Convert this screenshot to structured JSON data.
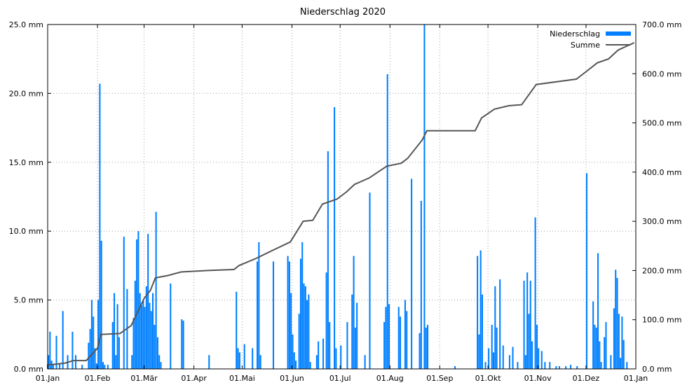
{
  "chart_data": {
    "type": "bar",
    "title": "Niederschlag 2020",
    "x_tick_labels": [
      "01.Jan",
      "01.Feb",
      "01.Mär",
      "01.Apr",
      "01.Mai",
      "01.Jun",
      "01.Jul",
      "01.Aug",
      "01.Sep",
      "01.Okt",
      "01.Nov",
      "01.Dez",
      "01.Jan"
    ],
    "y_left_ticks": [
      "0.0 mm",
      "5.0 mm",
      "10.0 mm",
      "15.0 mm",
      "20.0 mm",
      "25.0 mm"
    ],
    "y_right_ticks": [
      "0.0 mm",
      "100.0 mm",
      "200.0 mm",
      "300.0 mm",
      "400.0 mm",
      "500.0 mm",
      "600.0 mm",
      "700.0 mm"
    ],
    "ylim_left": [
      0,
      25
    ],
    "ylim_right": [
      0,
      700
    ],
    "grid": true,
    "legend_position": "top-right",
    "colors": {
      "bars": "#0080ff",
      "line": "#555555",
      "grid": "#a0a0a0"
    },
    "series": [
      {
        "name": "Niederschlag",
        "type": "bar",
        "axis": "left",
        "points": [
          [
            "2020-01-01",
            1.0
          ],
          [
            "2020-01-02",
            2.7
          ],
          [
            "2020-01-03",
            0.6
          ],
          [
            "2020-01-04",
            0.3
          ],
          [
            "2020-01-06",
            2.4
          ],
          [
            "2020-01-08",
            0.4
          ],
          [
            "2020-01-10",
            4.2
          ],
          [
            "2020-01-13",
            1.0
          ],
          [
            "2020-01-16",
            2.7
          ],
          [
            "2020-01-18",
            1.0
          ],
          [
            "2020-01-22",
            0.3
          ],
          [
            "2020-01-26",
            1.9
          ],
          [
            "2020-01-27",
            2.9
          ],
          [
            "2020-01-28",
            5.0
          ],
          [
            "2020-01-29",
            3.8
          ],
          [
            "2020-01-30",
            1.5
          ],
          [
            "2020-01-31",
            0.4
          ],
          [
            "2020-02-01",
            5.0
          ],
          [
            "2020-02-02",
            20.7
          ],
          [
            "2020-02-03",
            9.3
          ],
          [
            "2020-02-04",
            0.5
          ],
          [
            "2020-02-05",
            0.3
          ],
          [
            "2020-02-07",
            0.3
          ],
          [
            "2020-02-10",
            3.4
          ],
          [
            "2020-02-11",
            5.5
          ],
          [
            "2020-02-12",
            1.0
          ],
          [
            "2020-02-13",
            4.7
          ],
          [
            "2020-02-14",
            2.3
          ],
          [
            "2020-02-17",
            9.6
          ],
          [
            "2020-02-19",
            5.8
          ],
          [
            "2020-02-22",
            1.0
          ],
          [
            "2020-02-23",
            3.7
          ],
          [
            "2020-02-24",
            6.4
          ],
          [
            "2020-02-25",
            9.4
          ],
          [
            "2020-02-26",
            10.0
          ],
          [
            "2020-02-27",
            5.5
          ],
          [
            "2020-02-28",
            4.6
          ],
          [
            "2020-02-29",
            5.0
          ],
          [
            "2020-03-01",
            4.5
          ],
          [
            "2020-03-02",
            6.0
          ],
          [
            "2020-03-03",
            9.8
          ],
          [
            "2020-03-04",
            4.8
          ],
          [
            "2020-03-05",
            4.2
          ],
          [
            "2020-03-06",
            5.5
          ],
          [
            "2020-03-07",
            3.2
          ],
          [
            "2020-03-08",
            11.4
          ],
          [
            "2020-03-09",
            2.3
          ],
          [
            "2020-03-10",
            1.0
          ],
          [
            "2020-03-11",
            0.5
          ],
          [
            "2020-03-17",
            6.2
          ],
          [
            "2020-03-24",
            3.6
          ],
          [
            "2020-03-25",
            3.5
          ],
          [
            "2020-04-10",
            1.0
          ],
          [
            "2020-04-27",
            5.6
          ],
          [
            "2020-04-28",
            1.5
          ],
          [
            "2020-04-29",
            1.2
          ],
          [
            "2020-05-02",
            1.8
          ],
          [
            "2020-05-07",
            1.5
          ],
          [
            "2020-05-10",
            7.8
          ],
          [
            "2020-05-11",
            9.2
          ],
          [
            "2020-05-12",
            1.0
          ],
          [
            "2020-05-20",
            7.8
          ],
          [
            "2020-05-29",
            8.2
          ],
          [
            "2020-05-30",
            7.8
          ],
          [
            "2020-05-31",
            5.5
          ],
          [
            "2020-06-01",
            2.5
          ],
          [
            "2020-06-02",
            1.2
          ],
          [
            "2020-06-03",
            0.6
          ],
          [
            "2020-06-05",
            4.0
          ],
          [
            "2020-06-06",
            8.0
          ],
          [
            "2020-06-07",
            9.2
          ],
          [
            "2020-06-08",
            6.2
          ],
          [
            "2020-06-09",
            6.0
          ],
          [
            "2020-06-10",
            5.0
          ],
          [
            "2020-06-11",
            5.4
          ],
          [
            "2020-06-12",
            0.5
          ],
          [
            "2020-06-16",
            1.0
          ],
          [
            "2020-06-17",
            2.0
          ],
          [
            "2020-06-20",
            2.2
          ],
          [
            "2020-06-22",
            7.0
          ],
          [
            "2020-06-23",
            15.8
          ],
          [
            "2020-06-24",
            3.4
          ],
          [
            "2020-06-27",
            19.0
          ],
          [
            "2020-06-28",
            1.5
          ],
          [
            "2020-07-01",
            1.7
          ],
          [
            "2020-07-05",
            3.4
          ],
          [
            "2020-07-08",
            5.4
          ],
          [
            "2020-07-09",
            8.2
          ],
          [
            "2020-07-10",
            3.0
          ],
          [
            "2020-07-11",
            4.8
          ],
          [
            "2020-07-16",
            1.0
          ],
          [
            "2020-07-19",
            12.8
          ],
          [
            "2020-07-28",
            3.4
          ],
          [
            "2020-07-29",
            4.5
          ],
          [
            "2020-07-30",
            21.4
          ],
          [
            "2020-07-31",
            4.7
          ],
          [
            "2020-08-06",
            4.5
          ],
          [
            "2020-08-07",
            3.8
          ],
          [
            "2020-08-10",
            5.0
          ],
          [
            "2020-08-11",
            4.2
          ],
          [
            "2020-08-14",
            13.8
          ],
          [
            "2020-08-19",
            2.6
          ],
          [
            "2020-08-20",
            12.2
          ],
          [
            "2020-08-22",
            25.0
          ],
          [
            "2020-08-23",
            3.0
          ],
          [
            "2020-08-24",
            3.2
          ],
          [
            "2020-09-10",
            0.2
          ],
          [
            "2020-09-24",
            8.2
          ],
          [
            "2020-09-25",
            2.5
          ],
          [
            "2020-09-26",
            8.6
          ],
          [
            "2020-09-27",
            5.4
          ],
          [
            "2020-09-29",
            0.5
          ],
          [
            "2020-10-01",
            1.5
          ],
          [
            "2020-10-03",
            3.2
          ],
          [
            "2020-10-04",
            1.2
          ],
          [
            "2020-10-05",
            6.0
          ],
          [
            "2020-10-06",
            3.0
          ],
          [
            "2020-10-08",
            6.5
          ],
          [
            "2020-10-10",
            1.7
          ],
          [
            "2020-10-14",
            1.0
          ],
          [
            "2020-10-16",
            1.6
          ],
          [
            "2020-10-19",
            0.5
          ],
          [
            "2020-10-23",
            6.4
          ],
          [
            "2020-10-24",
            1.0
          ],
          [
            "2020-10-25",
            7.0
          ],
          [
            "2020-10-26",
            4.0
          ],
          [
            "2020-10-27",
            6.4
          ],
          [
            "2020-10-28",
            2.0
          ],
          [
            "2020-10-30",
            11.0
          ],
          [
            "2020-10-31",
            3.2
          ],
          [
            "2020-11-01",
            1.5
          ],
          [
            "2020-11-03",
            1.3
          ],
          [
            "2020-11-05",
            0.5
          ],
          [
            "2020-11-08",
            0.5
          ],
          [
            "2020-11-12",
            0.2
          ],
          [
            "2020-11-14",
            0.2
          ],
          [
            "2020-11-18",
            0.2
          ],
          [
            "2020-11-21",
            0.3
          ],
          [
            "2020-11-25",
            0.2
          ],
          [
            "2020-12-01",
            14.2
          ],
          [
            "2020-12-05",
            4.9
          ],
          [
            "2020-12-06",
            3.2
          ],
          [
            "2020-12-07",
            3.0
          ],
          [
            "2020-12-08",
            8.4
          ],
          [
            "2020-12-09",
            2.0
          ],
          [
            "2020-12-10",
            0.5
          ],
          [
            "2020-12-12",
            2.3
          ],
          [
            "2020-12-13",
            3.4
          ],
          [
            "2020-12-16",
            1.0
          ],
          [
            "2020-12-18",
            4.4
          ],
          [
            "2020-12-19",
            7.2
          ],
          [
            "2020-12-20",
            6.6
          ],
          [
            "2020-12-21",
            4.0
          ],
          [
            "2020-12-22",
            0.8
          ],
          [
            "2020-12-23",
            3.8
          ],
          [
            "2020-12-24",
            2.1
          ],
          [
            "2020-12-26",
            0.5
          ]
        ]
      },
      {
        "name": "Summe",
        "type": "line",
        "axis": "right",
        "points": [
          [
            "2020-01-01",
            0
          ],
          [
            "2020-01-01",
            8
          ],
          [
            "2020-01-07",
            10
          ],
          [
            "2020-01-12",
            12
          ],
          [
            "2020-01-17",
            17
          ],
          [
            "2020-01-25",
            17
          ],
          [
            "2020-02-01",
            42
          ],
          [
            "2020-02-03",
            70
          ],
          [
            "2020-02-15",
            72
          ],
          [
            "2020-02-22",
            88
          ],
          [
            "2020-03-01",
            143
          ],
          [
            "2020-03-05",
            160
          ],
          [
            "2020-03-08",
            185
          ],
          [
            "2020-03-16",
            190
          ],
          [
            "2020-03-24",
            197
          ],
          [
            "2020-04-10",
            200
          ],
          [
            "2020-04-26",
            202
          ],
          [
            "2020-04-29",
            210
          ],
          [
            "2020-05-10",
            225
          ],
          [
            "2020-05-20",
            241
          ],
          [
            "2020-05-31",
            258
          ],
          [
            "2020-06-08",
            300
          ],
          [
            "2020-06-14",
            302
          ],
          [
            "2020-06-20",
            335
          ],
          [
            "2020-06-29",
            345
          ],
          [
            "2020-07-05",
            360
          ],
          [
            "2020-07-10",
            375
          ],
          [
            "2020-07-19",
            388
          ],
          [
            "2020-07-30",
            412
          ],
          [
            "2020-08-08",
            418
          ],
          [
            "2020-08-12",
            428
          ],
          [
            "2020-08-21",
            465
          ],
          [
            "2020-08-24",
            484
          ],
          [
            "2020-09-23",
            484
          ],
          [
            "2020-09-27",
            510
          ],
          [
            "2020-10-05",
            528
          ],
          [
            "2020-10-14",
            535
          ],
          [
            "2020-10-22",
            537
          ],
          [
            "2020-10-31",
            578
          ],
          [
            "2020-11-25",
            589
          ],
          [
            "2020-12-01",
            604
          ],
          [
            "2020-12-08",
            622
          ],
          [
            "2020-12-15",
            630
          ],
          [
            "2020-12-21",
            648
          ],
          [
            "2020-12-31",
            663
          ]
        ]
      }
    ]
  }
}
